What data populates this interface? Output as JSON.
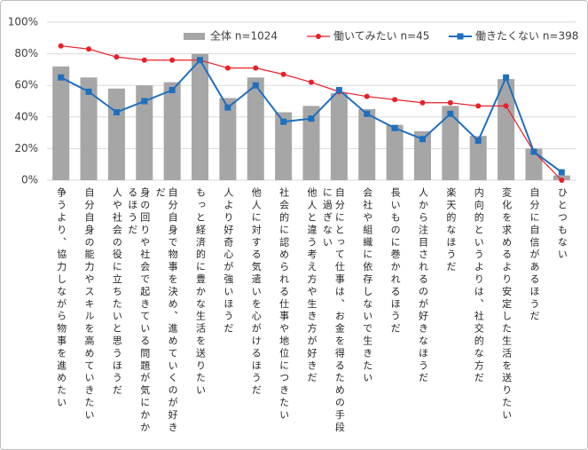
{
  "chart_data": {
    "type": "bar",
    "categories": [
      "争うより、協力しながら物事を進めたい",
      "自分自身の能力やスキルを高めていきたい",
      "人や社会の役に立ちたいと思うほうだ",
      "身の回りや社会で起きている問題が気にかかるほうだ",
      "自分自身で物事を決め、進めていくのが好きだ",
      "もっと経済的に豊かな生活を送りたい",
      "人より好奇心が強いほうだ",
      "他人に対する気遣いを心がけるほうだ",
      "社会的に認められる仕事や地位につきたい",
      "他人と違う考え方や生き方が好きだ",
      "自分にとって仕事は、お金を得るための手段に過ぎない",
      "会社や組織に依存しないで生きたい",
      "長いものに巻かれるほうだ",
      "人から注目されるのが好きなほうだ",
      "楽天的なほうだ",
      "内向的というよりは、社交的な方だ",
      "変化を求めるより安定した生活を送りたい",
      "自分に自信があるほうだ",
      "ひとつもない"
    ],
    "series": [
      {
        "name": "全体 n=1024",
        "type": "bar",
        "color": "#a6a6a6",
        "values": [
          72,
          65,
          58,
          60,
          62,
          80,
          52,
          65,
          43,
          47,
          55,
          45,
          35,
          31,
          47,
          28,
          64,
          20,
          3
        ]
      },
      {
        "name": "働いてみたい n=45",
        "type": "line",
        "color": "#e8202a",
        "values": [
          85,
          83,
          78,
          76,
          76,
          76,
          71,
          71,
          67,
          62,
          56,
          53,
          51,
          49,
          49,
          47,
          47,
          18,
          0
        ]
      },
      {
        "name": "働きたくない n=398",
        "type": "line",
        "color": "#1f6fbf",
        "values": [
          65,
          56,
          43,
          50,
          57,
          76,
          46,
          60,
          37,
          39,
          57,
          42,
          33,
          26,
          42,
          25,
          65,
          18,
          5
        ]
      }
    ],
    "ylim": [
      0,
      100
    ],
    "yticks": [
      {
        "value": 0,
        "label": "0%"
      },
      {
        "value": 20,
        "label": "20%"
      },
      {
        "value": 40,
        "label": "40%"
      },
      {
        "value": 60,
        "label": "60%"
      },
      {
        "value": 80,
        "label": "80%"
      },
      {
        "value": 100,
        "label": "100%"
      }
    ],
    "grid": true,
    "legend": "top"
  }
}
